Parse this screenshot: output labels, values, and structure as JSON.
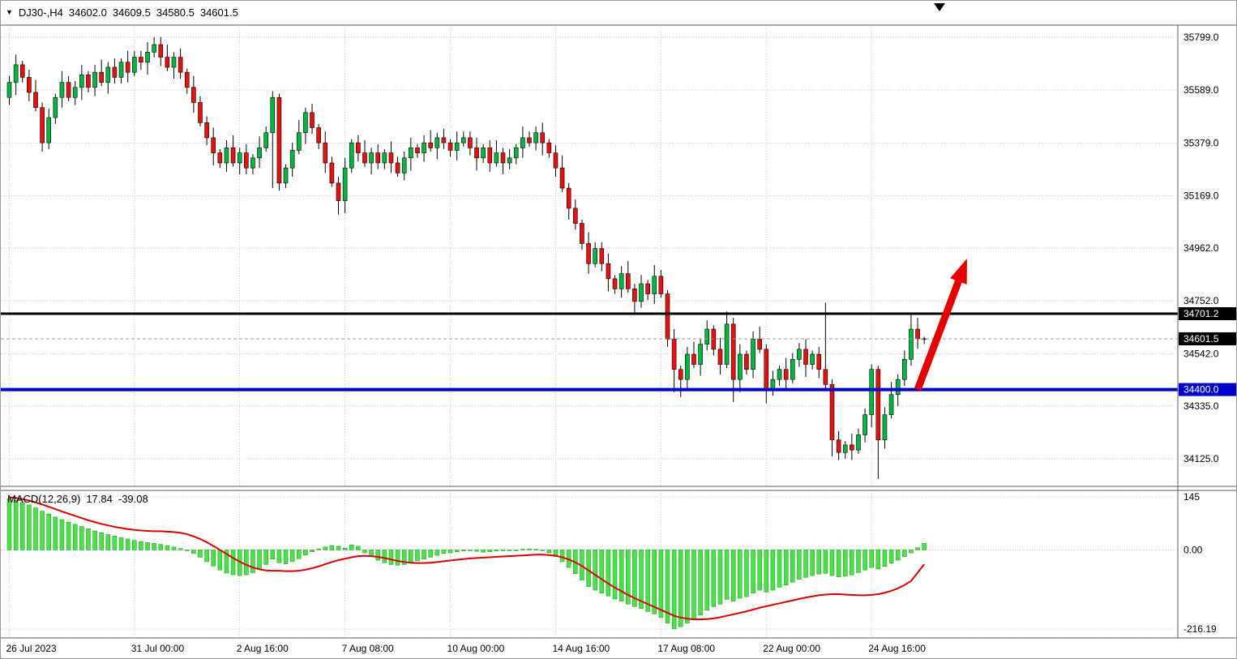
{
  "header": {
    "collapse_icon": "▼",
    "symbol": "DJ30-,H4",
    "open": "34602.0",
    "high": "34609.5",
    "low": "34580.5",
    "close": "34601.5"
  },
  "macd_panel": {
    "label": "MACD(12,26,9)",
    "macd_value": "17.84",
    "signal_value": "-39.08",
    "ticks": [
      {
        "label": "145",
        "value": 145
      },
      {
        "label": "0.00",
        "value": 0
      },
      {
        "label": "-216.19",
        "value": -216.19
      }
    ]
  },
  "price_lines": [
    {
      "name": "resistance-line",
      "label": "34701.2",
      "value": 34701.2,
      "line_color": "#000000",
      "badge_color": "#000000",
      "thickness": 3,
      "dash": ""
    },
    {
      "name": "current-price-line",
      "label": "34601.5",
      "value": 34601.5,
      "line_color": "#999999",
      "badge_color": "#000000",
      "thickness": 1,
      "dash": "4 3"
    },
    {
      "name": "support-line",
      "label": "34400.0",
      "value": 34400,
      "line_color": "#0000cc",
      "badge_color": "#0000cc",
      "thickness": 4,
      "dash": ""
    }
  ],
  "annotations": {
    "arrow": {
      "color": "#e60000",
      "from_index": 138,
      "from_price": 34400,
      "to_index": 145.5,
      "to_price": 34920
    }
  },
  "colors": {
    "bull": "#00b840",
    "bear": "#e81010",
    "wick": "#000000",
    "grid": "#c8c8c8",
    "border": "#5a5a5a",
    "hist_fill": "#4de04d",
    "hist_stroke": "#109910",
    "signal": "#dd0000"
  },
  "chart_data": [
    {
      "type": "candlestick",
      "title": "DJ30- H4",
      "y_ticks": [
        {
          "label": "35799.0",
          "value": 35799
        },
        {
          "label": "35589.0",
          "value": 35589
        },
        {
          "label": "35379.0",
          "value": 35379
        },
        {
          "label": "35169.0",
          "value": 35169
        },
        {
          "label": "34962.0",
          "value": 34962
        },
        {
          "label": "34752.0",
          "value": 34752
        },
        {
          "label": "34542.0",
          "value": 34542
        },
        {
          "label": "34335.0",
          "value": 34335
        },
        {
          "label": "34125.0",
          "value": 34125
        }
      ],
      "x_labels": [
        {
          "text": "26 Jul 2023",
          "index": 0
        },
        {
          "text": "31 Jul 00:00",
          "index": 19
        },
        {
          "text": "2 Aug 16:00",
          "index": 35
        },
        {
          "text": "7 Aug 08:00",
          "index": 51
        },
        {
          "text": "10 Aug 00:00",
          "index": 67
        },
        {
          "text": "14 Aug 16:00",
          "index": 83
        },
        {
          "text": "17 Aug 08:00",
          "index": 99
        },
        {
          "text": "22 Aug 00:00",
          "index": 115
        },
        {
          "text": "24 Aug 16:00",
          "index": 131
        }
      ],
      "open": [
        35560,
        35620,
        35690,
        35640,
        35580,
        35520,
        35380,
        35480,
        35560,
        35620,
        35560,
        35600,
        35650,
        35600,
        35660,
        35620,
        35680,
        35640,
        35700,
        35660,
        35720,
        35700,
        35740,
        35770,
        35720,
        35680,
        35720,
        35660,
        35600,
        35540,
        35460,
        35400,
        35340,
        35300,
        35360,
        35300,
        35340,
        35280,
        35320,
        35360,
        35420,
        35560,
        35220,
        35280,
        35350,
        35420,
        35500,
        35440,
        35380,
        35300,
        35220,
        35150,
        35280,
        35380,
        35340,
        35300,
        35340,
        35300,
        35340,
        35300,
        35260,
        35320,
        35360,
        35340,
        35380,
        35360,
        35400,
        35380,
        35350,
        35380,
        35400,
        35360,
        35320,
        35360,
        35300,
        35340,
        35300,
        35320,
        35360,
        35400,
        35380,
        35420,
        35380,
        35340,
        35280,
        35200,
        35120,
        35060,
        34980,
        34900,
        34960,
        34900,
        34840,
        34800,
        34860,
        34800,
        34750,
        34820,
        34780,
        34850,
        34780,
        34600,
        34480,
        34440,
        34540,
        34500,
        34580,
        34640,
        34560,
        34500,
        34660,
        34440,
        34540,
        34480,
        34600,
        34560,
        34400,
        34440,
        34480,
        34440,
        34520,
        34560,
        34500,
        34540,
        34480,
        34420,
        34200,
        34150,
        34180,
        34160,
        34220,
        34300,
        34480,
        34200,
        34300,
        34380,
        34440,
        34520,
        34640,
        34602
      ],
      "high": [
        35645,
        35730,
        35705,
        35670,
        35630,
        35540,
        35515,
        35575,
        35665,
        35645,
        35625,
        35690,
        35665,
        35690,
        35710,
        35700,
        35715,
        35715,
        35745,
        35745,
        35745,
        35780,
        35800,
        35800,
        35770,
        35740,
        35755,
        35675,
        35645,
        35565,
        35485,
        35440,
        35355,
        35390,
        35410,
        35360,
        35375,
        35335,
        35405,
        35445,
        35585,
        35575,
        35295,
        35380,
        35470,
        35520,
        35535,
        35455,
        35425,
        35325,
        35245,
        35320,
        35395,
        35410,
        35390,
        35360,
        35375,
        35355,
        35385,
        35325,
        35345,
        35400,
        35375,
        35410,
        35430,
        35420,
        35435,
        35395,
        35425,
        35425,
        35425,
        35400,
        35375,
        35390,
        35390,
        35360,
        35355,
        35375,
        35445,
        35425,
        35445,
        35460,
        35395,
        35370,
        35330,
        35220,
        35155,
        35075,
        35025,
        34985,
        34985,
        34940,
        34855,
        34890,
        34910,
        34820,
        34855,
        34835,
        34895,
        34875,
        34795,
        34640,
        34495,
        34570,
        34590,
        34600,
        34675,
        34655,
        34605,
        34710,
        34685,
        34580,
        34555,
        34630,
        34650,
        34580,
        34475,
        34495,
        34525,
        34545,
        34585,
        34600,
        34555,
        34570,
        34745,
        34440,
        34235,
        34195,
        34225,
        34245,
        34325,
        34500,
        34495,
        34330,
        34430,
        34460,
        34555,
        34700,
        34685,
        34609.5
      ],
      "low": [
        35530,
        35570,
        35620,
        35545,
        35505,
        35345,
        35355,
        35455,
        35520,
        35545,
        35530,
        35550,
        35580,
        35565,
        35605,
        35575,
        35615,
        35615,
        35620,
        35645,
        35670,
        35650,
        35720,
        35685,
        35665,
        35635,
        35635,
        35575,
        35500,
        35445,
        35370,
        35290,
        35280,
        35265,
        35285,
        35255,
        35255,
        35255,
        35280,
        35345,
        35200,
        35190,
        35200,
        35245,
        35335,
        35375,
        35415,
        35355,
        35260,
        35205,
        35095,
        35100,
        35260,
        35305,
        35285,
        35255,
        35275,
        35275,
        35260,
        35245,
        35230,
        35270,
        35320,
        35305,
        35345,
        35315,
        35355,
        35325,
        35310,
        35365,
        35330,
        35270,
        35300,
        35265,
        35285,
        35255,
        35275,
        35295,
        35320,
        35365,
        35350,
        35330,
        35320,
        35245,
        35185,
        35075,
        35035,
        34955,
        34860,
        34885,
        34870,
        34790,
        34780,
        34765,
        34785,
        34705,
        34725,
        34755,
        34740,
        34765,
        34570,
        34390,
        34370,
        34405,
        34485,
        34455,
        34555,
        34535,
        34460,
        34485,
        34350,
        34390,
        34460,
        34445,
        34545,
        34345,
        34375,
        34415,
        34400,
        34425,
        34490,
        34450,
        34480,
        34445,
        34395,
        34135,
        34120,
        34125,
        34120,
        34145,
        34190,
        34250,
        34045,
        34165,
        34285,
        34335,
        34415,
        34495,
        34562,
        34580.5
      ],
      "close": [
        35620,
        35690,
        35640,
        35580,
        35520,
        35380,
        35480,
        35560,
        35620,
        35560,
        35600,
        35650,
        35600,
        35660,
        35620,
        35680,
        35640,
        35700,
        35660,
        35720,
        35700,
        35740,
        35770,
        35720,
        35680,
        35720,
        35660,
        35600,
        35540,
        35460,
        35400,
        35340,
        35300,
        35360,
        35300,
        35340,
        35280,
        35320,
        35360,
        35420,
        35560,
        35220,
        35280,
        35350,
        35420,
        35500,
        35440,
        35380,
        35300,
        35220,
        35150,
        35280,
        35380,
        35340,
        35300,
        35340,
        35300,
        35340,
        35300,
        35260,
        35320,
        35360,
        35340,
        35380,
        35360,
        35400,
        35380,
        35350,
        35380,
        35400,
        35360,
        35320,
        35360,
        35300,
        35340,
        35300,
        35320,
        35360,
        35400,
        35380,
        35420,
        35380,
        35340,
        35280,
        35200,
        35120,
        35060,
        34980,
        34900,
        34960,
        34900,
        34840,
        34800,
        34860,
        34800,
        34750,
        34820,
        34780,
        34850,
        34780,
        34600,
        34480,
        34440,
        34540,
        34500,
        34580,
        34640,
        34560,
        34500,
        34660,
        34440,
        34540,
        34480,
        34600,
        34560,
        34400,
        34440,
        34480,
        34440,
        34520,
        34560,
        34500,
        34540,
        34480,
        34420,
        34200,
        34150,
        34180,
        34160,
        34220,
        34300,
        34480,
        34200,
        34300,
        34380,
        34440,
        34520,
        34640,
        34602,
        34601.5
      ]
    },
    {
      "type": "bar",
      "name": "MACD histogram",
      "ylim": [
        -216.19,
        145
      ],
      "values": [
        140,
        136,
        130,
        123,
        115,
        106,
        98,
        90,
        83,
        76,
        70,
        64,
        58,
        52,
        47,
        42,
        38,
        34,
        30,
        26,
        23,
        20,
        18,
        15,
        12,
        8,
        4,
        -2,
        -10,
        -20,
        -32,
        -44,
        -55,
        -63,
        -68,
        -70,
        -68,
        -62,
        -53,
        -40,
        -25,
        -35,
        -38,
        -32,
        -24,
        -14,
        -5,
        3,
        8,
        12,
        10,
        5,
        14,
        10,
        -8,
        -18,
        -28,
        -35,
        -40,
        -42,
        -40,
        -36,
        -30,
        -25,
        -20,
        -15,
        -10,
        -8,
        -5,
        -3,
        -2,
        -4,
        -6,
        -5,
        -3,
        -2,
        -1,
        0,
        2,
        3,
        2,
        -2,
        -8,
        -18,
        -32,
        -48,
        -65,
        -82,
        -100,
        -110,
        -118,
        -126,
        -134,
        -140,
        -148,
        -155,
        -160,
        -168,
        -175,
        -185,
        -200,
        -216,
        -210,
        -200,
        -190,
        -178,
        -165,
        -155,
        -148,
        -135,
        -140,
        -132,
        -128,
        -118,
        -110,
        -115,
        -110,
        -102,
        -96,
        -88,
        -80,
        -75,
        -70,
        -66,
        -64,
        -70,
        -74,
        -72,
        -68,
        -62,
        -55,
        -48,
        -52,
        -45,
        -36,
        -28,
        -18,
        -8,
        6,
        17.84
      ],
      "signal_line": [
        144,
        142,
        139,
        135,
        130,
        124,
        118,
        112,
        105,
        99,
        93,
        87,
        81,
        76,
        71,
        67,
        63,
        60,
        57,
        55,
        53,
        52,
        51,
        51,
        50,
        49,
        47,
        43,
        37,
        30,
        21,
        11,
        0,
        -11,
        -22,
        -32,
        -41,
        -48,
        -53,
        -56,
        -57,
        -57,
        -58,
        -58,
        -57,
        -54,
        -50,
        -45,
        -39,
        -33,
        -28,
        -24,
        -20,
        -17,
        -16,
        -17,
        -19,
        -22,
        -26,
        -30,
        -33,
        -35,
        -36,
        -36,
        -35,
        -33,
        -31,
        -29,
        -27,
        -25,
        -23,
        -22,
        -21,
        -20,
        -19,
        -18,
        -17,
        -16,
        -15,
        -14,
        -13,
        -13,
        -14,
        -16,
        -20,
        -26,
        -34,
        -44,
        -56,
        -68,
        -80,
        -92,
        -103,
        -113,
        -123,
        -132,
        -140,
        -148,
        -156,
        -164,
        -172,
        -180,
        -185,
        -188,
        -190,
        -190,
        -189,
        -187,
        -184,
        -180,
        -176,
        -172,
        -168,
        -163,
        -158,
        -154,
        -150,
        -146,
        -142,
        -138,
        -134,
        -130,
        -127,
        -124,
        -122,
        -121,
        -121,
        -122,
        -123,
        -124,
        -124,
        -123,
        -121,
        -117,
        -112,
        -105,
        -96,
        -85,
        -62,
        -39.08
      ]
    }
  ]
}
